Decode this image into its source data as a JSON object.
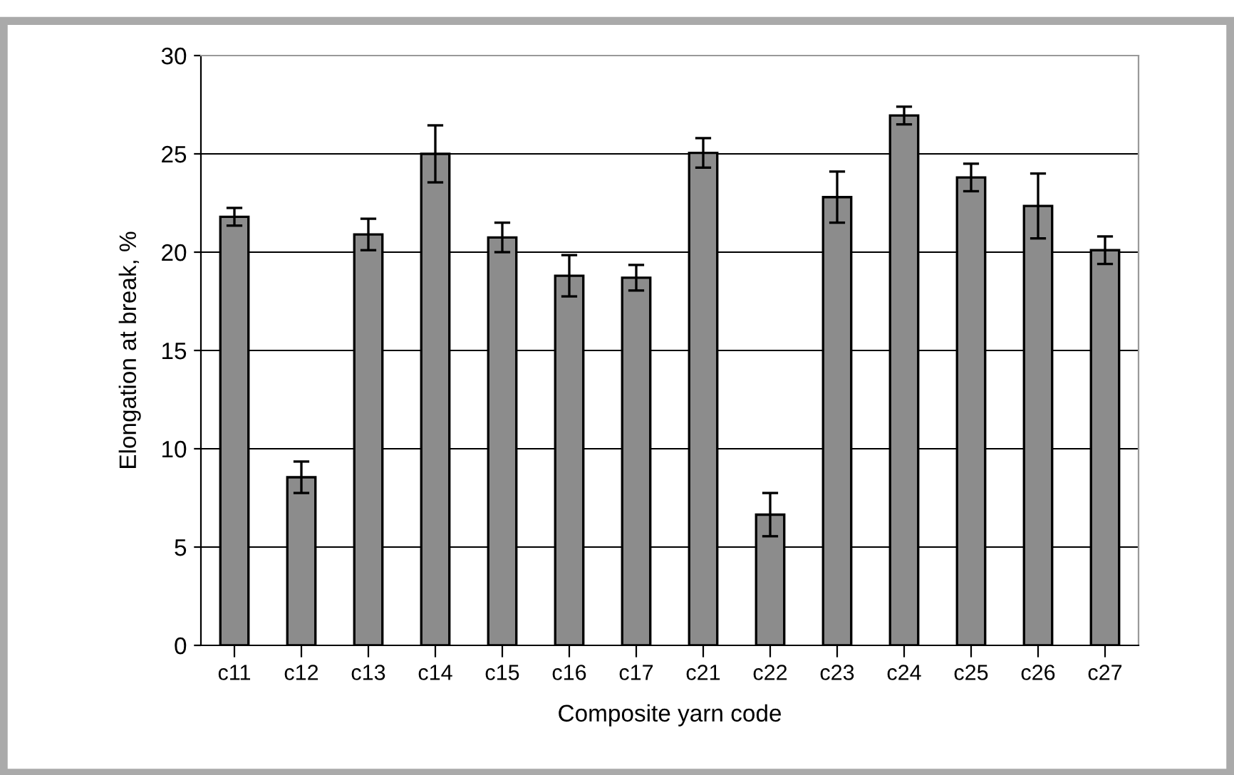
{
  "chart_data": {
    "type": "bar",
    "xlabel": "Composite yarn code",
    "ylabel": "Elongation at break, %",
    "categories": [
      "c11",
      "c12",
      "c13",
      "c14",
      "c15",
      "c16",
      "c17",
      "c21",
      "c22",
      "c23",
      "c24",
      "c25",
      "c26",
      "c27"
    ],
    "values": [
      21.8,
      8.55,
      20.9,
      25.0,
      20.75,
      18.8,
      18.7,
      25.05,
      6.65,
      22.8,
      26.95,
      23.8,
      22.35,
      20.1
    ],
    "errors": [
      0.45,
      0.8,
      0.8,
      1.45,
      0.75,
      1.05,
      0.65,
      0.75,
      1.1,
      1.3,
      0.45,
      0.7,
      1.65,
      0.7
    ],
    "color": "#8c8c8c",
    "ylim": [
      0,
      30
    ],
    "yticks": [
      0,
      5,
      10,
      15,
      20,
      25,
      30
    ],
    "grid": "y"
  }
}
